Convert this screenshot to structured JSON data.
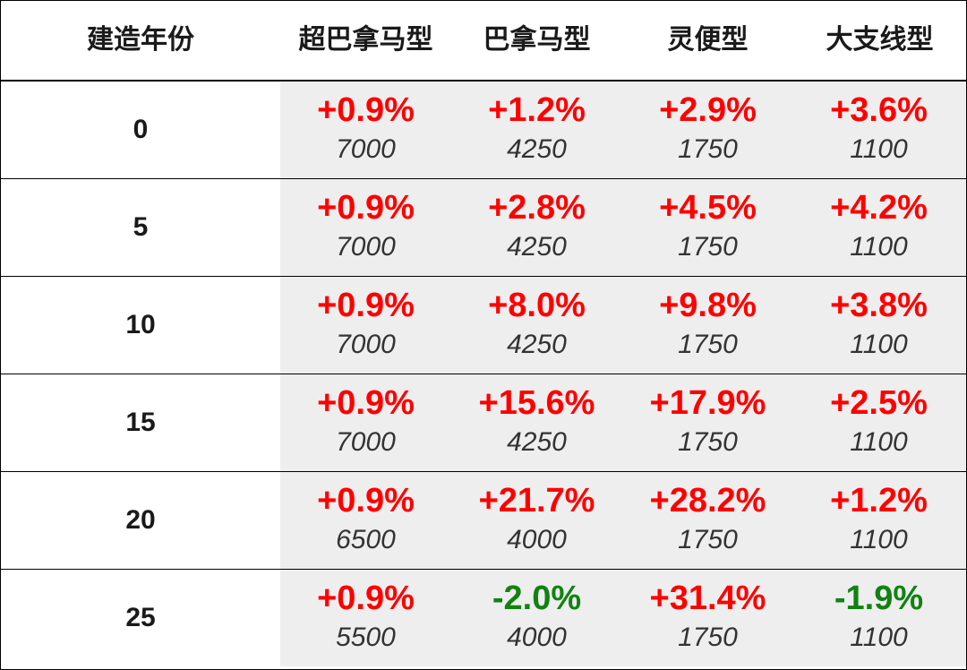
{
  "chart_data": {
    "type": "table",
    "columns": [
      "建造年份",
      "超巴拿马型",
      "巴拿马型",
      "灵便型",
      "大支线型"
    ],
    "rows": [
      {
        "year": "0",
        "cells": [
          {
            "change": "+0.9%",
            "value": "7000"
          },
          {
            "change": "+1.2%",
            "value": "4250"
          },
          {
            "change": "+2.9%",
            "value": "1750"
          },
          {
            "change": "+3.6%",
            "value": "1100"
          }
        ]
      },
      {
        "year": "5",
        "cells": [
          {
            "change": "+0.9%",
            "value": "7000"
          },
          {
            "change": "+2.8%",
            "value": "4250"
          },
          {
            "change": "+4.5%",
            "value": "1750"
          },
          {
            "change": "+4.2%",
            "value": "1100"
          }
        ]
      },
      {
        "year": "10",
        "cells": [
          {
            "change": "+0.9%",
            "value": "7000"
          },
          {
            "change": "+8.0%",
            "value": "4250"
          },
          {
            "change": "+9.8%",
            "value": "1750"
          },
          {
            "change": "+3.8%",
            "value": "1100"
          }
        ]
      },
      {
        "year": "15",
        "cells": [
          {
            "change": "+0.9%",
            "value": "7000"
          },
          {
            "change": "+15.6%",
            "value": "4250"
          },
          {
            "change": "+17.9%",
            "value": "1750"
          },
          {
            "change": "+2.5%",
            "value": "1100"
          }
        ]
      },
      {
        "year": "20",
        "cells": [
          {
            "change": "+0.9%",
            "value": "6500"
          },
          {
            "change": "+21.7%",
            "value": "4000"
          },
          {
            "change": "+28.2%",
            "value": "1750"
          },
          {
            "change": "+1.2%",
            "value": "1100"
          }
        ]
      },
      {
        "year": "25",
        "cells": [
          {
            "change": "+0.9%",
            "value": "5500"
          },
          {
            "change": "-2.0%",
            "value": "4000"
          },
          {
            "change": "+31.4%",
            "value": "1750"
          },
          {
            "change": "-1.9%",
            "value": "1100"
          }
        ]
      }
    ],
    "colors": {
      "positive": "#ff0000",
      "negative": "#128212",
      "value_text": "#333333",
      "shading": "#eeeeee"
    }
  }
}
